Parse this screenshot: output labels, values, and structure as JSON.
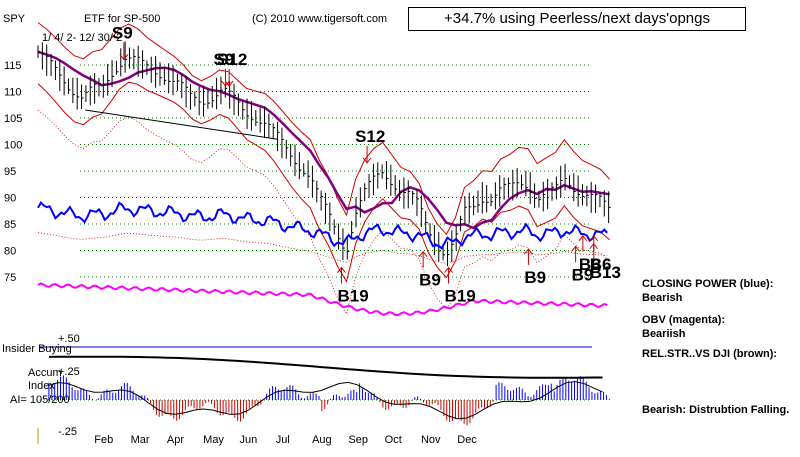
{
  "header": {
    "symbol": "SPY",
    "fund": "ETF for SP-500",
    "date_range": "1/ 4/ 2- 12/ 30/ 2",
    "copyright": "(C) 2010 www.tigersoft.com",
    "promo": "+34.7% using Peerless/next days'opngs"
  },
  "right_panel": {
    "closing_power_label": "CLOSING POWER (blue):",
    "closing_power_value": "Bearish",
    "obv_label": "OBV (magenta):",
    "obv_value": "Beariish",
    "relstr_label": "REL.STR..VS DJI (brown):",
    "accum_summary": "Bearish: Distrubtion Falling."
  },
  "indicator": {
    "title_line1": "Insider Buying",
    "title_line2": "Accum",
    "title_line3": "Index",
    "ai_label": "AI= 105/200",
    "tick_top": "+.50",
    "tick_mid": "+.25",
    "tick_bottom": "-.25"
  },
  "colors": {
    "price": "#000000",
    "closing_power": "#0000ff",
    "obv": "#ff00ff",
    "ma": "#800080",
    "bands": "#cc0000",
    "signal_arrow": "#cc0000",
    "grid": "#008000",
    "accum_pos": "#0000ff",
    "accum_neg": "#cc0000"
  },
  "chart_data": {
    "type": "line",
    "title": "SPY",
    "xlabel": "",
    "ylabel": "",
    "ylim": [
      70,
      120
    ],
    "y_ticks": [
      75,
      80,
      85,
      90,
      95,
      100,
      105,
      110,
      115
    ],
    "months": [
      "Feb",
      "Mar",
      "Apr",
      "May",
      "Jun",
      "Jul",
      "Aug",
      "Sep",
      "Oct",
      "Nov",
      "Dec"
    ],
    "grid": true,
    "price_points": [
      {
        "m": 0.0,
        "v": 117.5
      },
      {
        "m": 0.3,
        "v": 115.5
      },
      {
        "m": 0.6,
        "v": 113.0
      },
      {
        "m": 0.9,
        "v": 110.5
      },
      {
        "m": 1.2,
        "v": 109.0
      },
      {
        "m": 1.5,
        "v": 110.5
      },
      {
        "m": 1.8,
        "v": 111.0
      },
      {
        "m": 2.1,
        "v": 114.0
      },
      {
        "m": 2.4,
        "v": 116.5
      },
      {
        "m": 2.7,
        "v": 116.0
      },
      {
        "m": 3.0,
        "v": 114.5
      },
      {
        "m": 3.3,
        "v": 113.5
      },
      {
        "m": 3.6,
        "v": 112.5
      },
      {
        "m": 3.9,
        "v": 111.5
      },
      {
        "m": 4.2,
        "v": 109.0
      },
      {
        "m": 4.5,
        "v": 108.0
      },
      {
        "m": 4.8,
        "v": 109.0
      },
      {
        "m": 5.1,
        "v": 110.5
      },
      {
        "m": 5.4,
        "v": 108.5
      },
      {
        "m": 5.7,
        "v": 106.0
      },
      {
        "m": 6.0,
        "v": 105.0
      },
      {
        "m": 6.3,
        "v": 104.0
      },
      {
        "m": 6.6,
        "v": 101.5
      },
      {
        "m": 6.9,
        "v": 98.5
      },
      {
        "m": 7.2,
        "v": 96.0
      },
      {
        "m": 7.5,
        "v": 94.0
      },
      {
        "m": 7.75,
        "v": 90.0
      },
      {
        "m": 8.0,
        "v": 87.0
      },
      {
        "m": 8.25,
        "v": 83.0
      },
      {
        "m": 8.5,
        "v": 80.0
      },
      {
        "m": 8.75,
        "v": 87.0
      },
      {
        "m": 9.0,
        "v": 91.0
      },
      {
        "m": 9.25,
        "v": 93.5
      },
      {
        "m": 9.5,
        "v": 95.0
      },
      {
        "m": 9.75,
        "v": 93.0
      },
      {
        "m": 10.0,
        "v": 91.0
      },
      {
        "m": 10.25,
        "v": 90.5
      },
      {
        "m": 10.5,
        "v": 88.5
      },
      {
        "m": 10.75,
        "v": 84.0
      },
      {
        "m": 11.0,
        "v": 81.0
      },
      {
        "m": 11.25,
        "v": 79.0
      },
      {
        "m": 11.5,
        "v": 82.0
      },
      {
        "m": 11.75,
        "v": 87.5
      },
      {
        "m": 12.0,
        "v": 88.5
      },
      {
        "m": 12.25,
        "v": 90.0
      },
      {
        "m": 12.5,
        "v": 89.5
      },
      {
        "m": 12.75,
        "v": 91.5
      },
      {
        "m": 13.0,
        "v": 92.0
      },
      {
        "m": 13.25,
        "v": 93.0
      },
      {
        "m": 13.5,
        "v": 92.5
      },
      {
        "m": 13.75,
        "v": 89.5
      },
      {
        "m": 14.0,
        "v": 90.5
      },
      {
        "m": 14.25,
        "v": 91.5
      },
      {
        "m": 14.5,
        "v": 94.0
      },
      {
        "m": 14.75,
        "v": 92.0
      },
      {
        "m": 15.0,
        "v": 90.5
      },
      {
        "m": 15.25,
        "v": 90.0
      },
      {
        "m": 15.5,
        "v": 89.5
      },
      {
        "m": 15.75,
        "v": 88.0
      }
    ],
    "series": [
      {
        "name": "CLOSING POWER (blue)",
        "color": "#0000ff"
      },
      {
        "name": "OBV (magenta)",
        "color": "#ff00ff"
      },
      {
        "name": "REL.STR..VS DJI (brown)",
        "color": "#8b4513"
      }
    ],
    "signals": [
      {
        "label": "S9",
        "kind": "sell",
        "m": 2.2,
        "v": 118.5
      },
      {
        "label": "S9",
        "kind": "sell",
        "m": 5.0,
        "v": 113.5
      },
      {
        "label": "S12",
        "kind": "sell",
        "m": 5.1,
        "v": 113.5
      },
      {
        "label": "S12",
        "kind": "sell",
        "m": 8.9,
        "v": 99.0
      },
      {
        "label": "B19",
        "kind": "buy",
        "m": 8.25,
        "v": 73.0
      },
      {
        "label": "B9",
        "kind": "buy",
        "m": 10.5,
        "v": 76.0
      },
      {
        "label": "B19",
        "kind": "buy",
        "m": 11.2,
        "v": 73.0
      },
      {
        "label": "B9",
        "kind": "buy",
        "m": 13.4,
        "v": 76.5
      },
      {
        "label": "B9",
        "kind": "buy",
        "m": 14.7,
        "v": 77.0
      },
      {
        "label": "B6",
        "kind": "buy",
        "m": 14.9,
        "v": 79.0
      },
      {
        "label": "B6",
        "kind": "buy",
        "m": 15.2,
        "v": 79.0
      },
      {
        "label": "B13",
        "kind": "buy",
        "m": 15.2,
        "v": 77.5
      }
    ]
  }
}
